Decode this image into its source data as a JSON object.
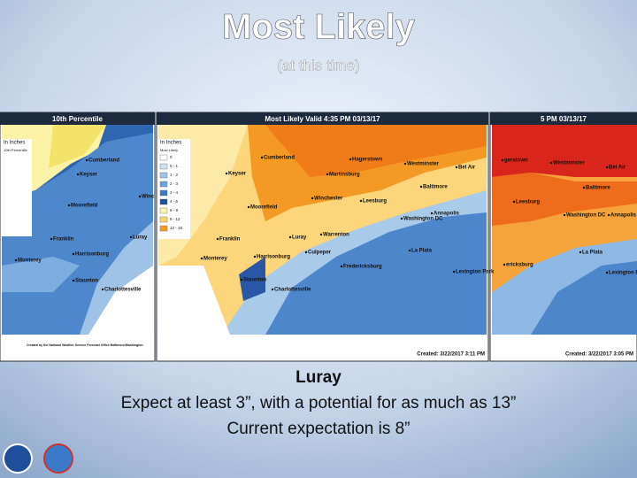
{
  "header": {
    "title": "Most Likely",
    "subtitle": "(at this time)"
  },
  "maps": [
    {
      "title": "10th Percentile",
      "legend_title": "In Inches",
      "legend_subtitle": "10th Percentile",
      "cities": [
        "Cumberland",
        "Keyser",
        "Moorefield",
        "Winc",
        "Franklin",
        "Luray",
        "Harrisonburg",
        "Monterey",
        "Staunton",
        "Charlottesville"
      ],
      "footer": "Created by the National Weather Service Forecast Office Baltimore/Washington"
    },
    {
      "title": "Most Likely Valid 4:35 PM 03/13/17",
      "legend_title": "In Inches",
      "legend_subtitle": "Most Likely",
      "legend_items": [
        "0",
        "0 - 1",
        "1 - 2",
        "2 - 3",
        "3 - 4",
        "4 - 6",
        "6 - 8",
        "8 - 12",
        "12 - 18"
      ],
      "cities": [
        "Cumberland",
        "Hagerstown",
        "Westminster",
        "Bel Air",
        "Keyser",
        "Martinsburg",
        "Baltimore",
        "Winchester",
        "Leesburg",
        "Moorefield",
        "Annapolis",
        "Washington DC",
        "Luray",
        "Warrenton",
        "Franklin",
        "Culpeper",
        "La Plata",
        "Harrisonburg",
        "Fredericksburg",
        "Monterey",
        "Lexington Park",
        "Staunton",
        "Charlottesville"
      ],
      "footer": "Created: 3/22/2017 3:11 PM"
    },
    {
      "title": "5 PM 03/13/17",
      "cities": [
        "gerstown",
        "Westminster",
        "Bel Air",
        "Baltimore",
        "Leesburg",
        "Washington DC",
        "Annapolis",
        "La Plata",
        "Lexington Park",
        "ericksburg"
      ],
      "footer": "Created: 3/22/2017 3:05 PM"
    }
  ],
  "caption": {
    "place": "Luray",
    "lines": [
      "Expect at least 3”, with a potential for as much as 13”",
      "Current expectation is 8”"
    ]
  }
}
